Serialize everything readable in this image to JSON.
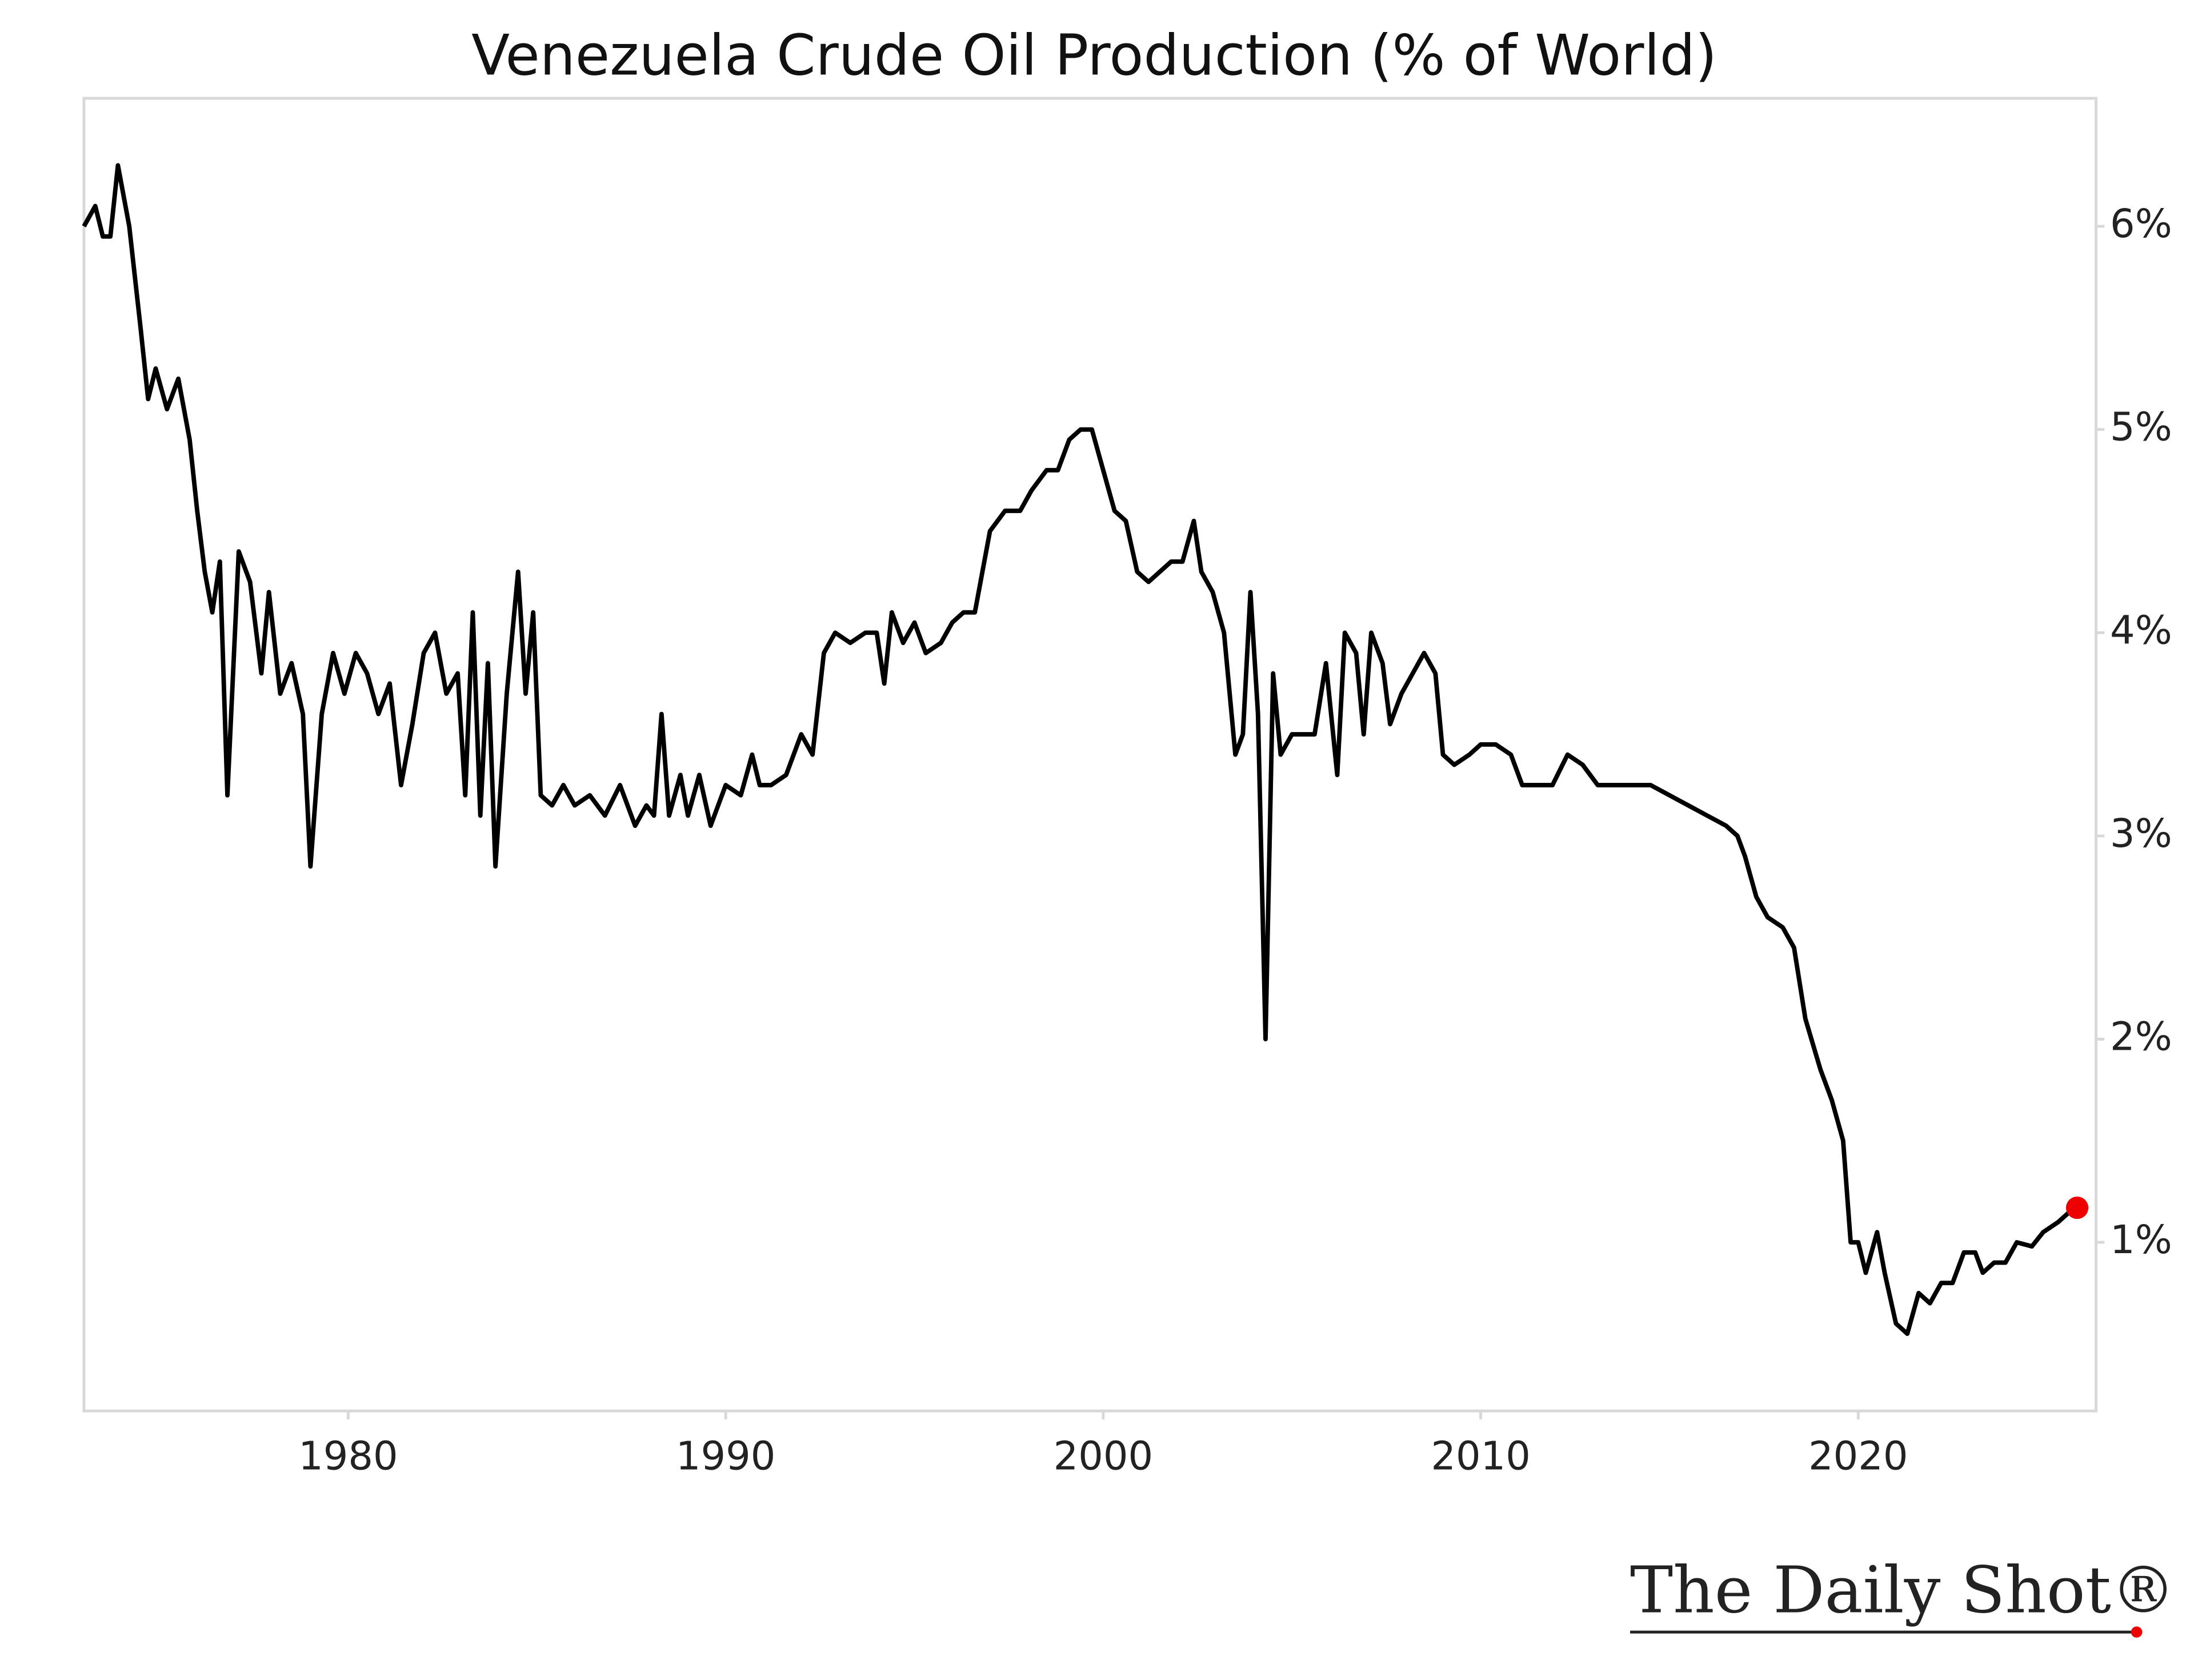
{
  "chart_data": {
    "type": "line",
    "title": "Venezuela Crude Oil Production (% of World)",
    "source": "The Daily Shot®",
    "x": [
      1973.0,
      1973.3,
      1973.5,
      1973.7,
      1973.9,
      1974.2,
      1974.5,
      1974.7,
      1974.9,
      1975.2,
      1975.5,
      1975.8,
      1976.0,
      1976.2,
      1976.4,
      1976.6,
      1976.8,
      1977.1,
      1977.4,
      1977.7,
      1977.9,
      1978.2,
      1978.5,
      1978.8,
      1979.0,
      1979.3,
      1979.6,
      1979.9,
      1980.2,
      1980.5,
      1980.8,
      1981.1,
      1981.4,
      1981.7,
      1982.0,
      1982.3,
      1982.6,
      1982.9,
      1983.1,
      1983.3,
      1983.5,
      1983.7,
      1983.9,
      1984.2,
      1984.5,
      1984.7,
      1984.9,
      1985.1,
      1985.4,
      1985.7,
      1986.0,
      1986.4,
      1986.8,
      1987.2,
      1987.6,
      1987.9,
      1988.1,
      1988.3,
      1988.5,
      1988.8,
      1989.0,
      1989.3,
      1989.6,
      1990.0,
      1990.4,
      1990.7,
      1990.9,
      1991.2,
      1991.6,
      1992.0,
      1992.3,
      1992.6,
      1992.9,
      1993.3,
      1993.7,
      1994.0,
      1994.2,
      1994.4,
      1994.7,
      1995.0,
      1995.3,
      1995.7,
      1996.0,
      1996.3,
      1996.6,
      1997.0,
      1997.4,
      1997.8,
      1998.1,
      1998.5,
      1998.8,
      1999.1,
      1999.4,
      1999.7,
      2000.0,
      2000.3,
      2000.6,
      2000.9,
      2001.2,
      2001.5,
      2001.8,
      2002.1,
      2002.4,
      2002.6,
      2002.9,
      2003.2,
      2003.5,
      2003.7,
      2003.9,
      2004.1,
      2004.3,
      2004.5,
      2004.7,
      2005.0,
      2005.3,
      2005.6,
      2005.9,
      2006.2,
      2006.4,
      2006.7,
      2006.9,
      2007.1,
      2007.4,
      2007.6,
      2007.9,
      2008.2,
      2008.5,
      2008.8,
      2009.0,
      2009.3,
      2009.7,
      2010.0,
      2010.4,
      2010.8,
      2011.1,
      2011.5,
      2011.9,
      2012.3,
      2012.7,
      2013.1,
      2013.6,
      2014.0,
      2014.5,
      2015.0,
      2015.5,
      2016.0,
      2016.5,
      2016.8,
      2017.0,
      2017.3,
      2017.6,
      2018.0,
      2018.3,
      2018.6,
      2019.0,
      2019.3,
      2019.6,
      2019.8,
      2020.0,
      2020.2,
      2020.5,
      2020.7,
      2021.0,
      2021.3,
      2021.6,
      2021.9,
      2022.2,
      2022.5,
      2022.8,
      2023.1,
      2023.3,
      2023.6,
      2023.9,
      2024.2,
      2024.6,
      2024.9,
      2025.3,
      2025.6,
      2025.8
    ],
    "series": [
      {
        "name": "Venezuela",
        "color": "#000000",
        "values": [
          6.0,
          6.1,
          5.95,
          5.95,
          6.3,
          6.0,
          5.5,
          5.15,
          5.3,
          5.1,
          5.25,
          4.95,
          4.6,
          4.3,
          4.1,
          4.35,
          3.2,
          4.4,
          4.25,
          3.8,
          4.2,
          3.7,
          3.85,
          3.6,
          2.85,
          3.6,
          3.9,
          3.7,
          3.9,
          3.8,
          3.6,
          3.75,
          3.25,
          3.55,
          3.9,
          4.0,
          3.7,
          3.8,
          3.2,
          4.1,
          3.1,
          3.85,
          2.85,
          3.7,
          4.3,
          3.7,
          4.1,
          3.2,
          3.15,
          3.25,
          3.15,
          3.2,
          3.1,
          3.25,
          3.05,
          3.15,
          3.1,
          3.6,
          3.1,
          3.3,
          3.1,
          3.3,
          3.05,
          3.25,
          3.2,
          3.4,
          3.25,
          3.25,
          3.3,
          3.5,
          3.4,
          3.9,
          4.0,
          3.95,
          4.0,
          4.0,
          3.75,
          4.1,
          3.95,
          4.05,
          3.9,
          3.95,
          4.05,
          4.1,
          4.1,
          4.5,
          4.6,
          4.6,
          4.7,
          4.8,
          4.8,
          4.95,
          5.0,
          5.0,
          4.8,
          4.6,
          4.55,
          4.3,
          4.25,
          4.3,
          4.35,
          4.35,
          4.55,
          4.3,
          4.2,
          4.0,
          3.4,
          3.5,
          4.2,
          3.6,
          2.0,
          3.8,
          3.4,
          3.5,
          3.5,
          3.5,
          3.85,
          3.3,
          4.0,
          3.9,
          3.5,
          4.0,
          3.85,
          3.55,
          3.7,
          3.8,
          3.9,
          3.8,
          3.4,
          3.35,
          3.4,
          3.45,
          3.45,
          3.4,
          3.25,
          3.25,
          3.25,
          3.4,
          3.35,
          3.25,
          3.25,
          3.25,
          3.25,
          3.2,
          3.15,
          3.1,
          3.05,
          3.0,
          2.9,
          2.7,
          2.6,
          2.55,
          2.45,
          2.1,
          1.85,
          1.7,
          1.5,
          1.0,
          1.0,
          0.85,
          1.05,
          0.85,
          0.6,
          0.55,
          0.75,
          0.7,
          0.8,
          0.8,
          0.95,
          0.95,
          0.85,
          0.9,
          0.9,
          1.0,
          0.98,
          1.05,
          1.1,
          1.15,
          1.17
        ]
      }
    ],
    "highlight_last": true,
    "highlight_color": "#ee0000",
    "xlim": [
      1973.0,
      2026.3
    ],
    "xticks": [
      1980,
      1990,
      2000,
      2010,
      2020
    ],
    "ylim": [
      0.17,
      6.63
    ],
    "yticks": [
      {
        "value": 1,
        "label": "1%"
      },
      {
        "value": 2,
        "label": "2%"
      },
      {
        "value": 3,
        "label": "3%"
      },
      {
        "value": 4,
        "label": "4%"
      },
      {
        "value": 5,
        "label": "5%"
      },
      {
        "value": 6,
        "label": "6%"
      }
    ],
    "y_axis_side": "right",
    "grid": false
  }
}
